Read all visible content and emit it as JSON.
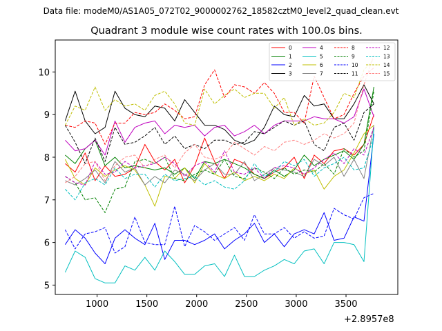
{
  "header": {
    "file_label": "Data file: modeM0/AS1A05_072T02_9000002762_18582cztM0_level2_quad_clean.evt",
    "title": "Quadrant 3 module wise count rates with 100.0s bins."
  },
  "chart_data": {
    "type": "line",
    "title": "Quadrant 3 module wise count rates with 100.0s bins.",
    "xlabel": "",
    "ylabel": "",
    "x_offset_label": "+2.8957e8",
    "xlim": [
      580,
      4020
    ],
    "ylim": [
      4.78,
      10.75
    ],
    "x_ticks": [
      1000,
      1500,
      2000,
      2500,
      3000,
      3500
    ],
    "x_tick_labels": [
      "1000",
      "1500",
      "2000",
      "2500",
      "3000",
      "3500"
    ],
    "y_ticks": [
      5,
      6,
      7,
      8,
      9,
      10
    ],
    "y_tick_labels": [
      "5",
      "6",
      "7",
      "8",
      "9",
      "10"
    ],
    "legend_position": "top-right",
    "x": [
      680,
      780,
      880,
      980,
      1080,
      1180,
      1280,
      1380,
      1480,
      1580,
      1680,
      1780,
      1880,
      1980,
      2080,
      2180,
      2280,
      2380,
      2480,
      2580,
      2680,
      2780,
      2880,
      2980,
      3080,
      3180,
      3280,
      3380,
      3480,
      3580,
      3680,
      3780
    ],
    "series": [
      {
        "name": "0",
        "color": "#ff0000",
        "dash": "solid",
        "values": [
          7.85,
          7.65,
          8.1,
          7.45,
          7.8,
          7.55,
          7.6,
          7.75,
          8.3,
          7.9,
          7.7,
          7.95,
          7.4,
          7.8,
          8.45,
          7.9,
          7.5,
          7.95,
          7.85,
          7.6,
          7.5,
          7.65,
          7.75,
          8.0,
          7.5,
          8.05,
          7.85,
          8.15,
          8.2,
          8.05,
          8.3,
          9.0
        ]
      },
      {
        "name": "1",
        "color": "#008000",
        "dash": "solid",
        "values": [
          8.05,
          7.85,
          8.2,
          8.4,
          7.8,
          8.0,
          7.75,
          7.8,
          7.75,
          7.7,
          7.75,
          7.6,
          7.75,
          7.5,
          7.9,
          7.85,
          7.95,
          7.85,
          7.75,
          7.6,
          7.5,
          7.7,
          7.55,
          7.7,
          8.05,
          7.8,
          7.95,
          8.05,
          8.15,
          7.95,
          8.3,
          9.65
        ]
      },
      {
        "name": "2",
        "color": "#0000ff",
        "dash": "solid",
        "values": [
          5.95,
          6.3,
          6.1,
          5.75,
          5.5,
          6.1,
          6.3,
          6.1,
          5.95,
          6.45,
          5.6,
          6.05,
          6.05,
          5.95,
          6.05,
          6.2,
          5.85,
          6.05,
          6.2,
          6.45,
          6.0,
          6.2,
          5.9,
          6.2,
          6.3,
          6.2,
          6.7,
          6.05,
          6.1,
          6.6,
          6.5,
          8.55
        ]
      },
      {
        "name": "3",
        "color": "#000000",
        "dash": "solid",
        "values": [
          8.85,
          9.55,
          8.85,
          8.55,
          8.7,
          9.55,
          9.15,
          9.0,
          8.95,
          9.2,
          9.15,
          8.85,
          9.35,
          9.05,
          8.75,
          8.75,
          8.65,
          8.4,
          8.3,
          8.4,
          8.7,
          9.2,
          9.0,
          8.95,
          9.45,
          9.2,
          9.25,
          8.9,
          8.9,
          9.25,
          9.7,
          9.25
        ]
      },
      {
        "name": "4",
        "color": "#bf00bf",
        "dash": "solid",
        "values": [
          8.4,
          8.15,
          8.2,
          8.4,
          8.05,
          8.85,
          8.35,
          8.7,
          8.8,
          8.85,
          8.55,
          8.75,
          8.7,
          8.75,
          8.5,
          8.7,
          8.75,
          8.5,
          8.6,
          8.75,
          8.55,
          8.75,
          8.85,
          8.85,
          8.85,
          8.95,
          8.9,
          8.9,
          8.8,
          8.95,
          9.6,
          8.95
        ]
      },
      {
        "name": "5",
        "color": "#00bfbf",
        "dash": "solid",
        "values": [
          5.3,
          5.8,
          5.65,
          5.15,
          5.05,
          5.05,
          5.45,
          5.35,
          5.65,
          5.35,
          5.8,
          5.55,
          5.25,
          5.25,
          5.45,
          5.5,
          5.2,
          5.7,
          5.2,
          5.2,
          5.35,
          5.45,
          5.6,
          5.5,
          5.8,
          5.85,
          5.5,
          6.0,
          6.0,
          5.95,
          5.55,
          8.7
        ]
      },
      {
        "name": "6",
        "color": "#bfbf00",
        "dash": "solid",
        "values": [
          7.95,
          7.5,
          7.35,
          7.75,
          7.55,
          7.7,
          7.8,
          7.7,
          7.35,
          6.85,
          7.55,
          7.5,
          7.75,
          7.4,
          7.85,
          7.6,
          7.5,
          7.65,
          7.45,
          7.55,
          7.45,
          7.6,
          7.5,
          7.75,
          7.6,
          7.7,
          7.25,
          7.55,
          7.7,
          8.1,
          8.55,
          8.75
        ]
      },
      {
        "name": "7",
        "color": "#808080",
        "dash": "solid",
        "values": [
          7.45,
          7.35,
          7.5,
          7.7,
          7.4,
          7.9,
          7.65,
          7.75,
          7.35,
          7.55,
          7.4,
          7.7,
          7.6,
          7.45,
          7.7,
          7.85,
          7.6,
          7.6,
          7.9,
          7.45,
          7.6,
          7.75,
          7.7,
          7.65,
          7.55,
          7.95,
          7.8,
          8.0,
          7.55,
          7.95,
          7.5,
          8.75
        ]
      },
      {
        "name": "8",
        "color": "#ff0000",
        "dash": "dashed",
        "values": [
          8.75,
          8.7,
          8.85,
          8.8,
          8.3,
          8.8,
          8.8,
          9.05,
          9.0,
          9.05,
          9.25,
          9.1,
          8.9,
          8.95,
          9.7,
          10.05,
          9.4,
          9.7,
          9.65,
          9.5,
          9.75,
          9.5,
          9.05,
          9.05,
          8.8,
          9.9,
          9.4,
          8.9,
          9.0,
          9.5,
          9.9,
          10.1
        ]
      },
      {
        "name": "9",
        "color": "#008000",
        "dash": "dashed",
        "values": [
          7.55,
          7.4,
          7.0,
          7.05,
          6.7,
          7.25,
          7.3,
          7.9,
          7.95,
          7.85,
          8.0,
          7.5,
          7.45,
          7.6,
          7.7,
          7.6,
          7.95,
          7.55,
          7.5,
          7.75,
          7.65,
          7.5,
          7.75,
          7.6,
          7.7,
          7.65,
          7.85,
          7.6,
          8.2,
          8.0,
          8.15,
          9.55
        ]
      },
      {
        "name": "10",
        "color": "#0000ff",
        "dash": "dashed",
        "values": [
          6.3,
          5.85,
          6.2,
          6.25,
          6.35,
          5.75,
          5.9,
          6.6,
          6.0,
          5.95,
          5.95,
          6.85,
          5.9,
          6.4,
          6.25,
          6.05,
          6.2,
          6.35,
          6.05,
          6.65,
          6.2,
          6.2,
          6.35,
          6.1,
          6.25,
          6.1,
          6.15,
          6.8,
          6.65,
          6.55,
          7.05,
          7.15
        ]
      },
      {
        "name": "11",
        "color": "#000000",
        "dash": "dashed",
        "values": [
          8.75,
          8.35,
          7.85,
          8.45,
          7.9,
          8.7,
          8.3,
          8.35,
          8.5,
          8.7,
          8.3,
          8.5,
          8.2,
          8.3,
          8.2,
          8.4,
          8.4,
          8.3,
          8.35,
          8.6,
          8.55,
          8.7,
          8.85,
          8.75,
          8.85,
          8.3,
          8.15,
          8.7,
          8.8,
          8.4,
          9.05,
          9.25
        ]
      },
      {
        "name": "12",
        "color": "#bf00bf",
        "dash": "dashed",
        "values": [
          7.55,
          7.4,
          7.35,
          7.9,
          7.6,
          7.65,
          7.9,
          7.75,
          7.8,
          7.85,
          8.0,
          7.85,
          7.55,
          7.8,
          7.9,
          7.65,
          8.15,
          7.65,
          7.6,
          7.75,
          7.5,
          7.75,
          7.8,
          7.75,
          7.6,
          7.75,
          7.95,
          8.1,
          7.85,
          8.2,
          8.05,
          8.7
        ]
      },
      {
        "name": "13",
        "color": "#00bfbf",
        "dash": "dashed",
        "values": [
          7.25,
          7.0,
          7.4,
          7.5,
          7.35,
          7.75,
          7.5,
          7.6,
          7.6,
          7.3,
          7.6,
          7.45,
          7.5,
          7.55,
          7.35,
          7.45,
          7.3,
          7.25,
          7.45,
          7.85,
          7.55,
          7.65,
          7.9,
          7.8,
          7.95,
          7.55,
          7.75,
          7.85,
          8.0,
          7.7,
          7.75,
          8.5
        ]
      },
      {
        "name": "14",
        "color": "#bfbf00",
        "dash": "dashed",
        "values": [
          8.75,
          9.2,
          9.1,
          9.65,
          9.1,
          9.35,
          9.2,
          9.25,
          9.1,
          9.45,
          9.55,
          9.25,
          8.8,
          8.75,
          9.6,
          9.25,
          9.45,
          9.6,
          9.4,
          9.5,
          9.5,
          9.15,
          9.4,
          8.75,
          8.9,
          8.75,
          8.8,
          9.05,
          9.5,
          9.4,
          10.05,
          10.3
        ]
      },
      {
        "name": "15",
        "color": "#ff7f7f",
        "dash": "dashed",
        "values": [
          7.4,
          7.55,
          7.85,
          7.9,
          7.45,
          7.8,
          8.0,
          8.05,
          7.75,
          7.95,
          8.05,
          7.75,
          8.1,
          8.3,
          8.0,
          7.95,
          8.05,
          8.35,
          8.2,
          8.05,
          8.25,
          8.15,
          8.35,
          8.4,
          8.3,
          8.4,
          8.55,
          8.45,
          8.55,
          8.8,
          9.7,
          10.4
        ]
      }
    ]
  }
}
